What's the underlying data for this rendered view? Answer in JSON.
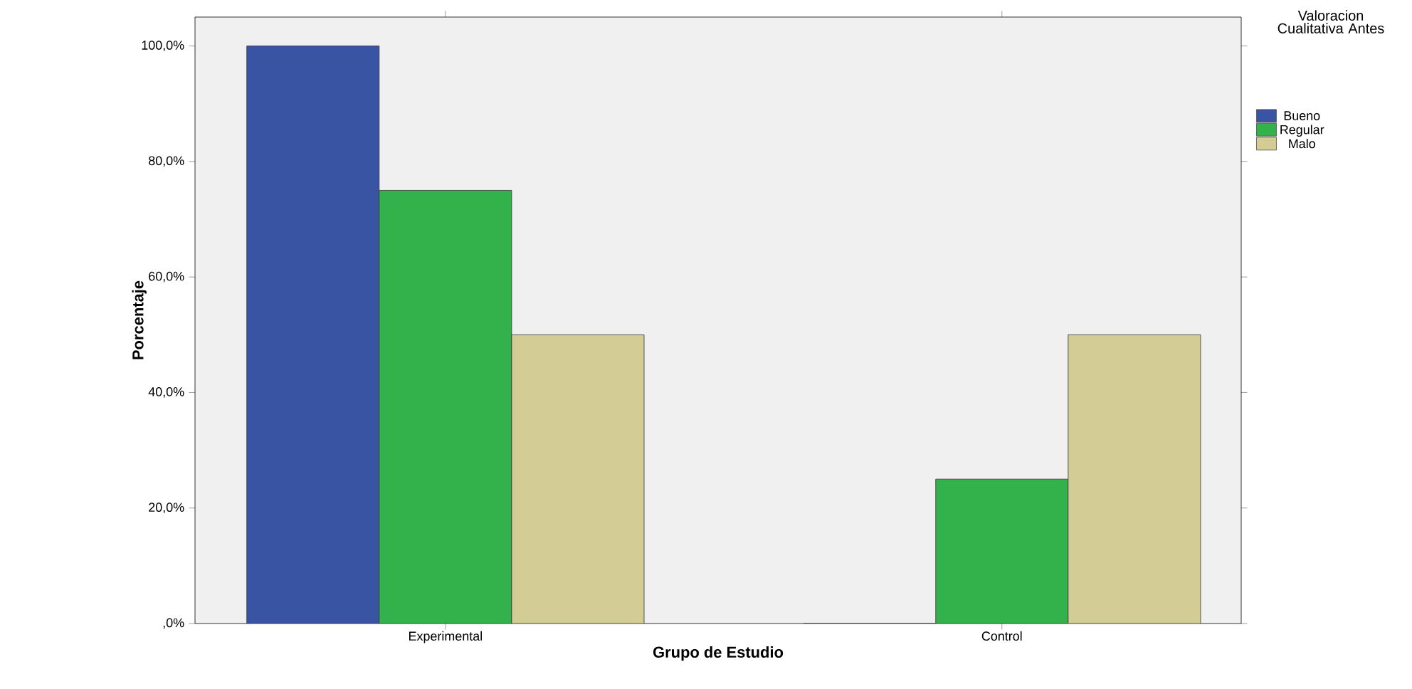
{
  "chart_data": {
    "type": "bar",
    "xlabel": "Grupo de Estudio",
    "ylabel": "Porcentaje",
    "legend_title": "Valoracion Cualitativa Antes",
    "categories": [
      "Experimental",
      "Control"
    ],
    "series": [
      {
        "name": "Bueno",
        "color": "#3a54a4",
        "values": [
          100,
          0
        ]
      },
      {
        "name": "Regular",
        "color": "#33b24b",
        "values": [
          75,
          25
        ]
      },
      {
        "name": "Malo",
        "color": "#d3cd95",
        "values": [
          50,
          50
        ]
      }
    ],
    "ylim": [
      0,
      105
    ],
    "yticks": [
      {
        "value": 0,
        "label": ",0%"
      },
      {
        "value": 20,
        "label": "20,0%"
      },
      {
        "value": 40,
        "label": "40,0%"
      },
      {
        "value": 60,
        "label": "60,0%"
      },
      {
        "value": 80,
        "label": "80,0%"
      },
      {
        "value": 100,
        "label": "100,0%"
      }
    ],
    "grid": false,
    "legend": "top right"
  }
}
